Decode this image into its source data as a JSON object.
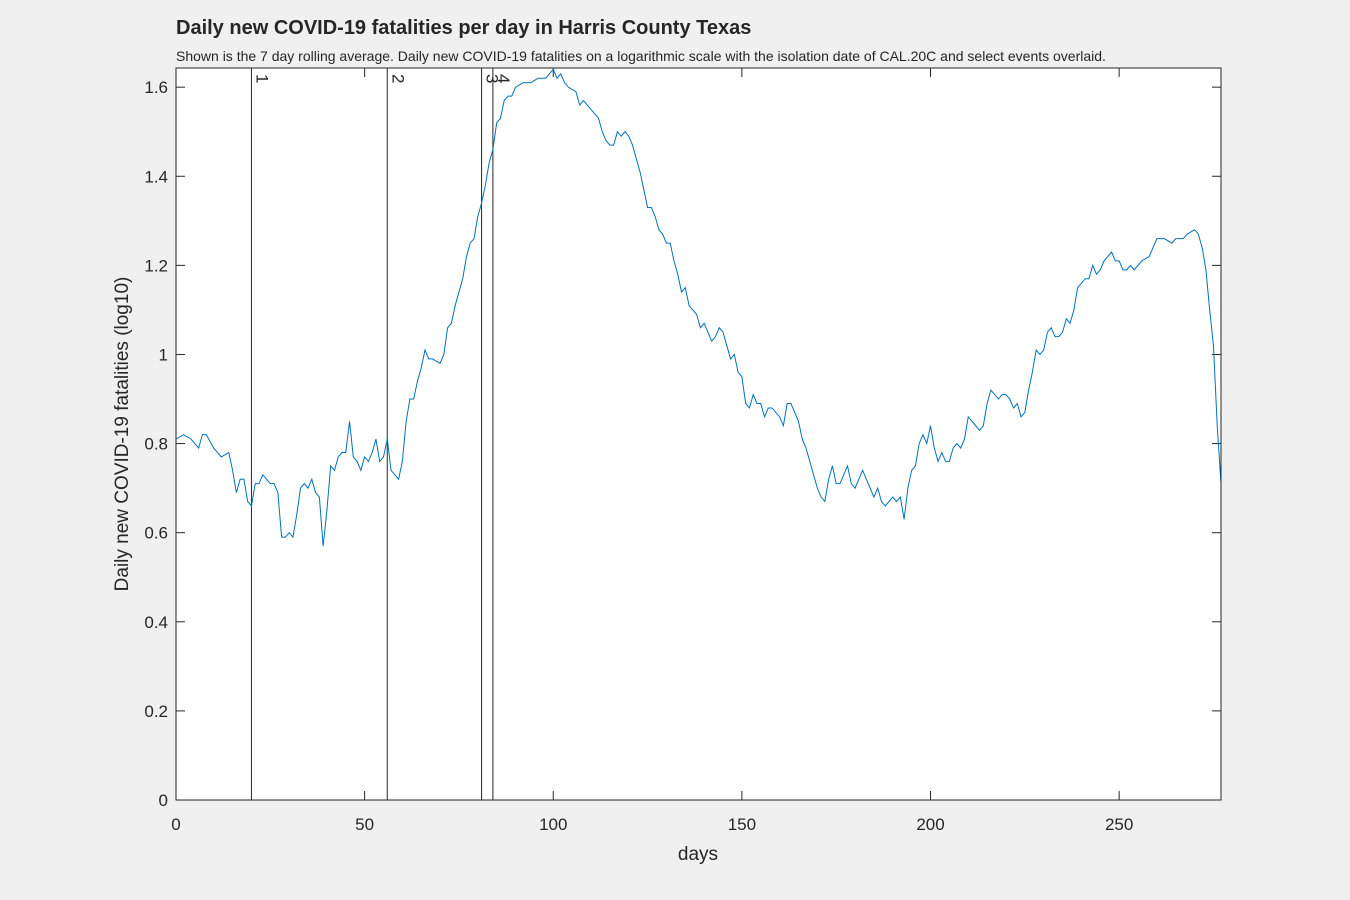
{
  "chart_data": {
    "type": "line",
    "title": "Daily new COVID-19 fatalities per day in Harris County Texas",
    "subtitle": "Shown is the 7 day rolling average. Daily new COVID-19 fatalities on a logarithmic scale with the isolation date of CAL.20C and select events overlaid.",
    "xlabel": "days",
    "ylabel": "Daily new COVID-19 fatalities (log10)",
    "color": "#0072bd",
    "x": [
      0,
      2,
      4,
      6,
      7,
      8,
      10,
      12,
      14,
      15,
      16,
      17,
      18,
      19,
      20,
      21,
      22,
      23,
      25,
      26,
      27,
      28,
      29,
      30,
      31,
      32,
      33,
      34,
      35,
      36,
      37,
      38,
      39,
      40,
      41,
      42,
      43,
      44,
      45,
      46,
      47,
      48,
      49,
      50,
      51,
      52,
      53,
      54,
      55,
      56,
      57,
      58,
      59,
      60,
      61,
      62,
      63,
      64,
      65,
      66,
      67,
      68,
      70,
      71,
      72,
      73,
      74,
      75,
      76,
      77,
      78,
      79,
      80,
      81,
      82,
      83,
      84,
      85,
      86,
      87,
      88,
      89,
      90,
      92,
      94,
      96,
      98,
      99,
      100,
      101,
      102,
      103,
      104,
      106,
      107,
      108,
      110,
      112,
      113,
      114,
      115,
      116,
      117,
      118,
      119,
      120,
      121,
      122,
      123,
      124,
      125,
      126,
      127,
      128,
      129,
      130,
      131,
      132,
      133,
      134,
      135,
      136,
      137,
      138,
      139,
      140,
      141,
      142,
      143,
      144,
      145,
      146,
      147,
      148,
      149,
      150,
      151,
      152,
      153,
      154,
      155,
      156,
      157,
      158,
      159,
      160,
      161,
      162,
      163,
      164,
      165,
      166,
      167,
      168,
      169,
      170,
      171,
      172,
      173,
      174,
      175,
      176,
      177,
      178,
      179,
      180,
      181,
      182,
      183,
      184,
      185,
      186,
      187,
      188,
      189,
      190,
      191,
      192,
      193,
      194,
      195,
      196,
      197,
      198,
      199,
      200,
      201,
      202,
      203,
      204,
      205,
      206,
      207,
      208,
      209,
      210,
      211,
      212,
      213,
      214,
      215,
      216,
      217,
      218,
      219,
      220,
      221,
      222,
      223,
      224,
      225,
      226,
      227,
      228,
      229,
      230,
      231,
      232,
      233,
      234,
      235,
      236,
      237,
      238,
      239,
      240,
      241,
      242,
      243,
      244,
      245,
      246,
      247,
      248,
      249,
      250,
      251,
      252,
      253,
      254,
      255,
      256,
      258,
      260,
      262,
      264,
      265,
      267,
      268,
      270,
      271,
      272,
      273,
      274,
      275,
      276,
      277
    ],
    "values": [
      0.81,
      0.82,
      0.81,
      0.79,
      0.82,
      0.82,
      0.79,
      0.77,
      0.78,
      0.74,
      0.69,
      0.72,
      0.72,
      0.67,
      0.66,
      0.71,
      0.71,
      0.73,
      0.71,
      0.71,
      0.69,
      0.59,
      0.59,
      0.6,
      0.59,
      0.64,
      0.7,
      0.71,
      0.7,
      0.72,
      0.69,
      0.68,
      0.57,
      0.65,
      0.75,
      0.74,
      0.77,
      0.78,
      0.78,
      0.85,
      0.77,
      0.76,
      0.74,
      0.77,
      0.76,
      0.78,
      0.81,
      0.76,
      0.77,
      0.81,
      0.74,
      0.73,
      0.72,
      0.76,
      0.85,
      0.9,
      0.9,
      0.94,
      0.97,
      1.01,
      0.99,
      0.99,
      0.98,
      1.0,
      1.06,
      1.07,
      1.11,
      1.14,
      1.17,
      1.22,
      1.25,
      1.26,
      1.31,
      1.34,
      1.38,
      1.43,
      1.46,
      1.52,
      1.53,
      1.57,
      1.58,
      1.58,
      1.6,
      1.61,
      1.61,
      1.62,
      1.62,
      1.63,
      1.64,
      1.62,
      1.63,
      1.61,
      1.6,
      1.59,
      1.56,
      1.57,
      1.55,
      1.53,
      1.5,
      1.48,
      1.47,
      1.47,
      1.5,
      1.49,
      1.5,
      1.49,
      1.47,
      1.44,
      1.41,
      1.37,
      1.33,
      1.33,
      1.31,
      1.28,
      1.27,
      1.25,
      1.25,
      1.21,
      1.18,
      1.14,
      1.15,
      1.11,
      1.1,
      1.09,
      1.06,
      1.07,
      1.05,
      1.03,
      1.04,
      1.06,
      1.05,
      1.02,
      0.99,
      1.0,
      0.96,
      0.95,
      0.89,
      0.88,
      0.91,
      0.89,
      0.89,
      0.86,
      0.88,
      0.88,
      0.87,
      0.86,
      0.84,
      0.89,
      0.89,
      0.87,
      0.85,
      0.81,
      0.79,
      0.76,
      0.73,
      0.7,
      0.68,
      0.67,
      0.72,
      0.75,
      0.71,
      0.71,
      0.73,
      0.75,
      0.71,
      0.7,
      0.72,
      0.74,
      0.72,
      0.7,
      0.68,
      0.7,
      0.67,
      0.66,
      0.67,
      0.68,
      0.67,
      0.68,
      0.63,
      0.7,
      0.74,
      0.75,
      0.8,
      0.82,
      0.8,
      0.84,
      0.79,
      0.76,
      0.78,
      0.76,
      0.76,
      0.79,
      0.8,
      0.79,
      0.81,
      0.86,
      0.85,
      0.84,
      0.83,
      0.84,
      0.89,
      0.92,
      0.91,
      0.9,
      0.91,
      0.91,
      0.9,
      0.88,
      0.89,
      0.86,
      0.87,
      0.92,
      0.96,
      1.01,
      1.0,
      1.01,
      1.05,
      1.06,
      1.04,
      1.04,
      1.05,
      1.08,
      1.07,
      1.1,
      1.15,
      1.16,
      1.17,
      1.17,
      1.2,
      1.18,
      1.19,
      1.21,
      1.22,
      1.23,
      1.21,
      1.21,
      1.19,
      1.19,
      1.2,
      1.19,
      1.2,
      1.21,
      1.22,
      1.26,
      1.26,
      1.25,
      1.26,
      1.26,
      1.27,
      1.28,
      1.27,
      1.24,
      1.19,
      1.1,
      1.02,
      0.84,
      0.71
    ],
    "xlim": [
      0,
      277
    ],
    "xticks": [
      0,
      50,
      100,
      150,
      200,
      250
    ],
    "ylim": [
      0,
      1.643
    ],
    "yticks": [
      0,
      0.2,
      0.4,
      0.6,
      0.8,
      1,
      1.2,
      1.4,
      1.6
    ],
    "events": [
      {
        "x": 20,
        "label": "1"
      },
      {
        "x": 56,
        "label": "2"
      },
      {
        "x": 81,
        "label": "3"
      },
      {
        "x": 84,
        "label": "4"
      }
    ]
  }
}
